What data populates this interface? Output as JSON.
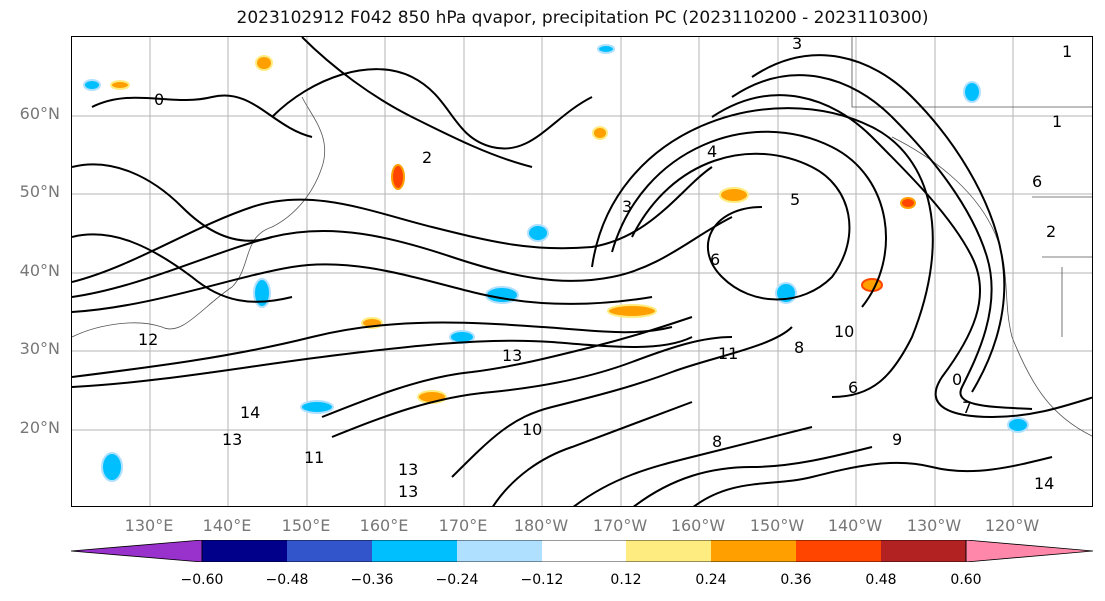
{
  "title": "2023102912 F042 850 hPa qvapor, precipitation PC (2023110200 - 2023110300)",
  "map": {
    "projection": "PlateCarree (Pacific-centered)",
    "extent_lon": [
      120,
      256
    ],
    "extent_lat": [
      10,
      70
    ],
    "grid": true,
    "lat_labels": [
      "60°N",
      "50°N",
      "40°N",
      "30°N",
      "20°N"
    ],
    "lon_labels": [
      "130°E",
      "140°E",
      "150°E",
      "160°E",
      "170°E",
      "180°W",
      "170°W",
      "160°W",
      "150°W",
      "140°W",
      "130°W",
      "120°W"
    ],
    "contour_labels": [
      "3",
      "3",
      "4",
      "6",
      "8",
      "6",
      "5",
      "7",
      "10",
      "11",
      "13",
      "14",
      "13",
      "13",
      "13",
      "12",
      "14",
      "11",
      "10",
      "8",
      "9",
      "6",
      "2",
      "1",
      "0",
      "0",
      "2",
      "1"
    ],
    "features": [
      "coastlines",
      "country borders",
      "state borders",
      "qvapor contours",
      "precipitation shading"
    ]
  },
  "colorbar": {
    "ticks": [
      "−0.60",
      "−0.48",
      "−0.36",
      "−0.24",
      "−0.12",
      "0.12",
      "0.24",
      "0.36",
      "0.48",
      "0.60"
    ],
    "colors": [
      "#9932cc",
      "#00008b",
      "#3355cc",
      "#00bfff",
      "#b0e0ff",
      "#ffffff",
      "#ffec80",
      "#ffa000",
      "#ff4500",
      "#b22222",
      "#ff88aa"
    ],
    "extend": "both"
  }
}
